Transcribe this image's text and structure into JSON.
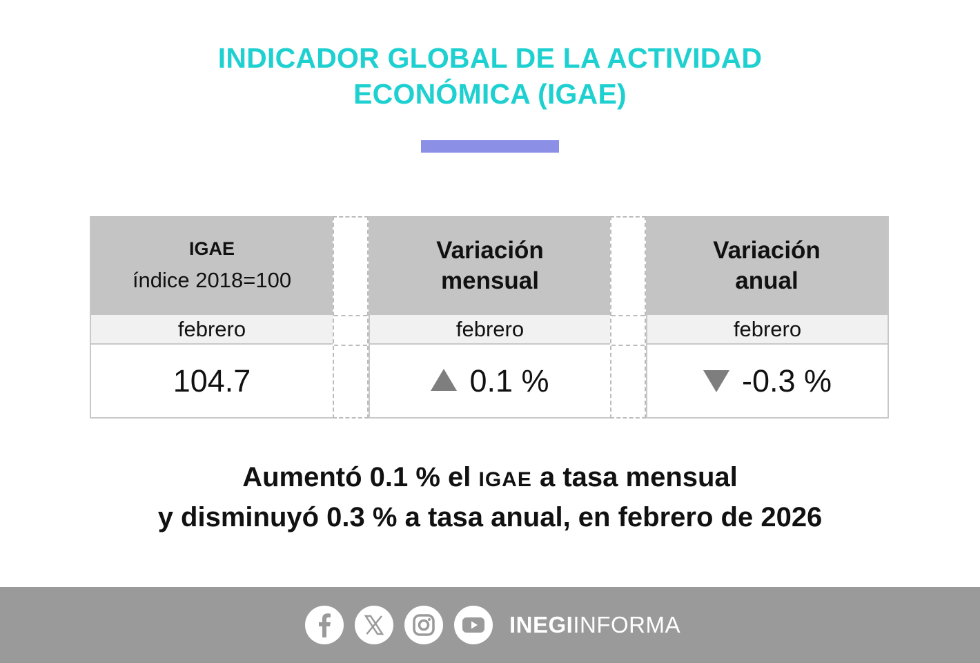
{
  "title": {
    "line1": "INDICADOR GLOBAL DE LA ACTIVIDAD",
    "line2": "ECONÓMICA (IGAE)"
  },
  "colors": {
    "title": "#1fd0d0",
    "accent_bar": "#8b8fe6",
    "header_bg": "#c4c4c4",
    "footer_bg": "#9a9a9a"
  },
  "table": {
    "igae": {
      "label": "IGAE",
      "sublabel": "índice 2018=100",
      "month": "febrero",
      "value": "104.7"
    },
    "monthly": {
      "label_line1": "Variación",
      "label_line2": "mensual",
      "month": "febrero",
      "value": "0.1 %",
      "direction": "up"
    },
    "annual": {
      "label_line1": "Variación",
      "label_line2": "anual",
      "month": "febrero",
      "value": "-0.3 %",
      "direction": "down"
    }
  },
  "summary": {
    "line1_a": "Aumentó 0.1 % el ",
    "line1_b": "IGAE",
    "line1_c": " a tasa mensual",
    "line2": "y disminuyó 0.3 % a tasa anual, en febrero de 2026"
  },
  "footer": {
    "icons": [
      "facebook-icon",
      "x-icon",
      "instagram-icon",
      "youtube-icon"
    ],
    "brand_bold": "INEGI",
    "brand_regular": "INFORMA"
  }
}
